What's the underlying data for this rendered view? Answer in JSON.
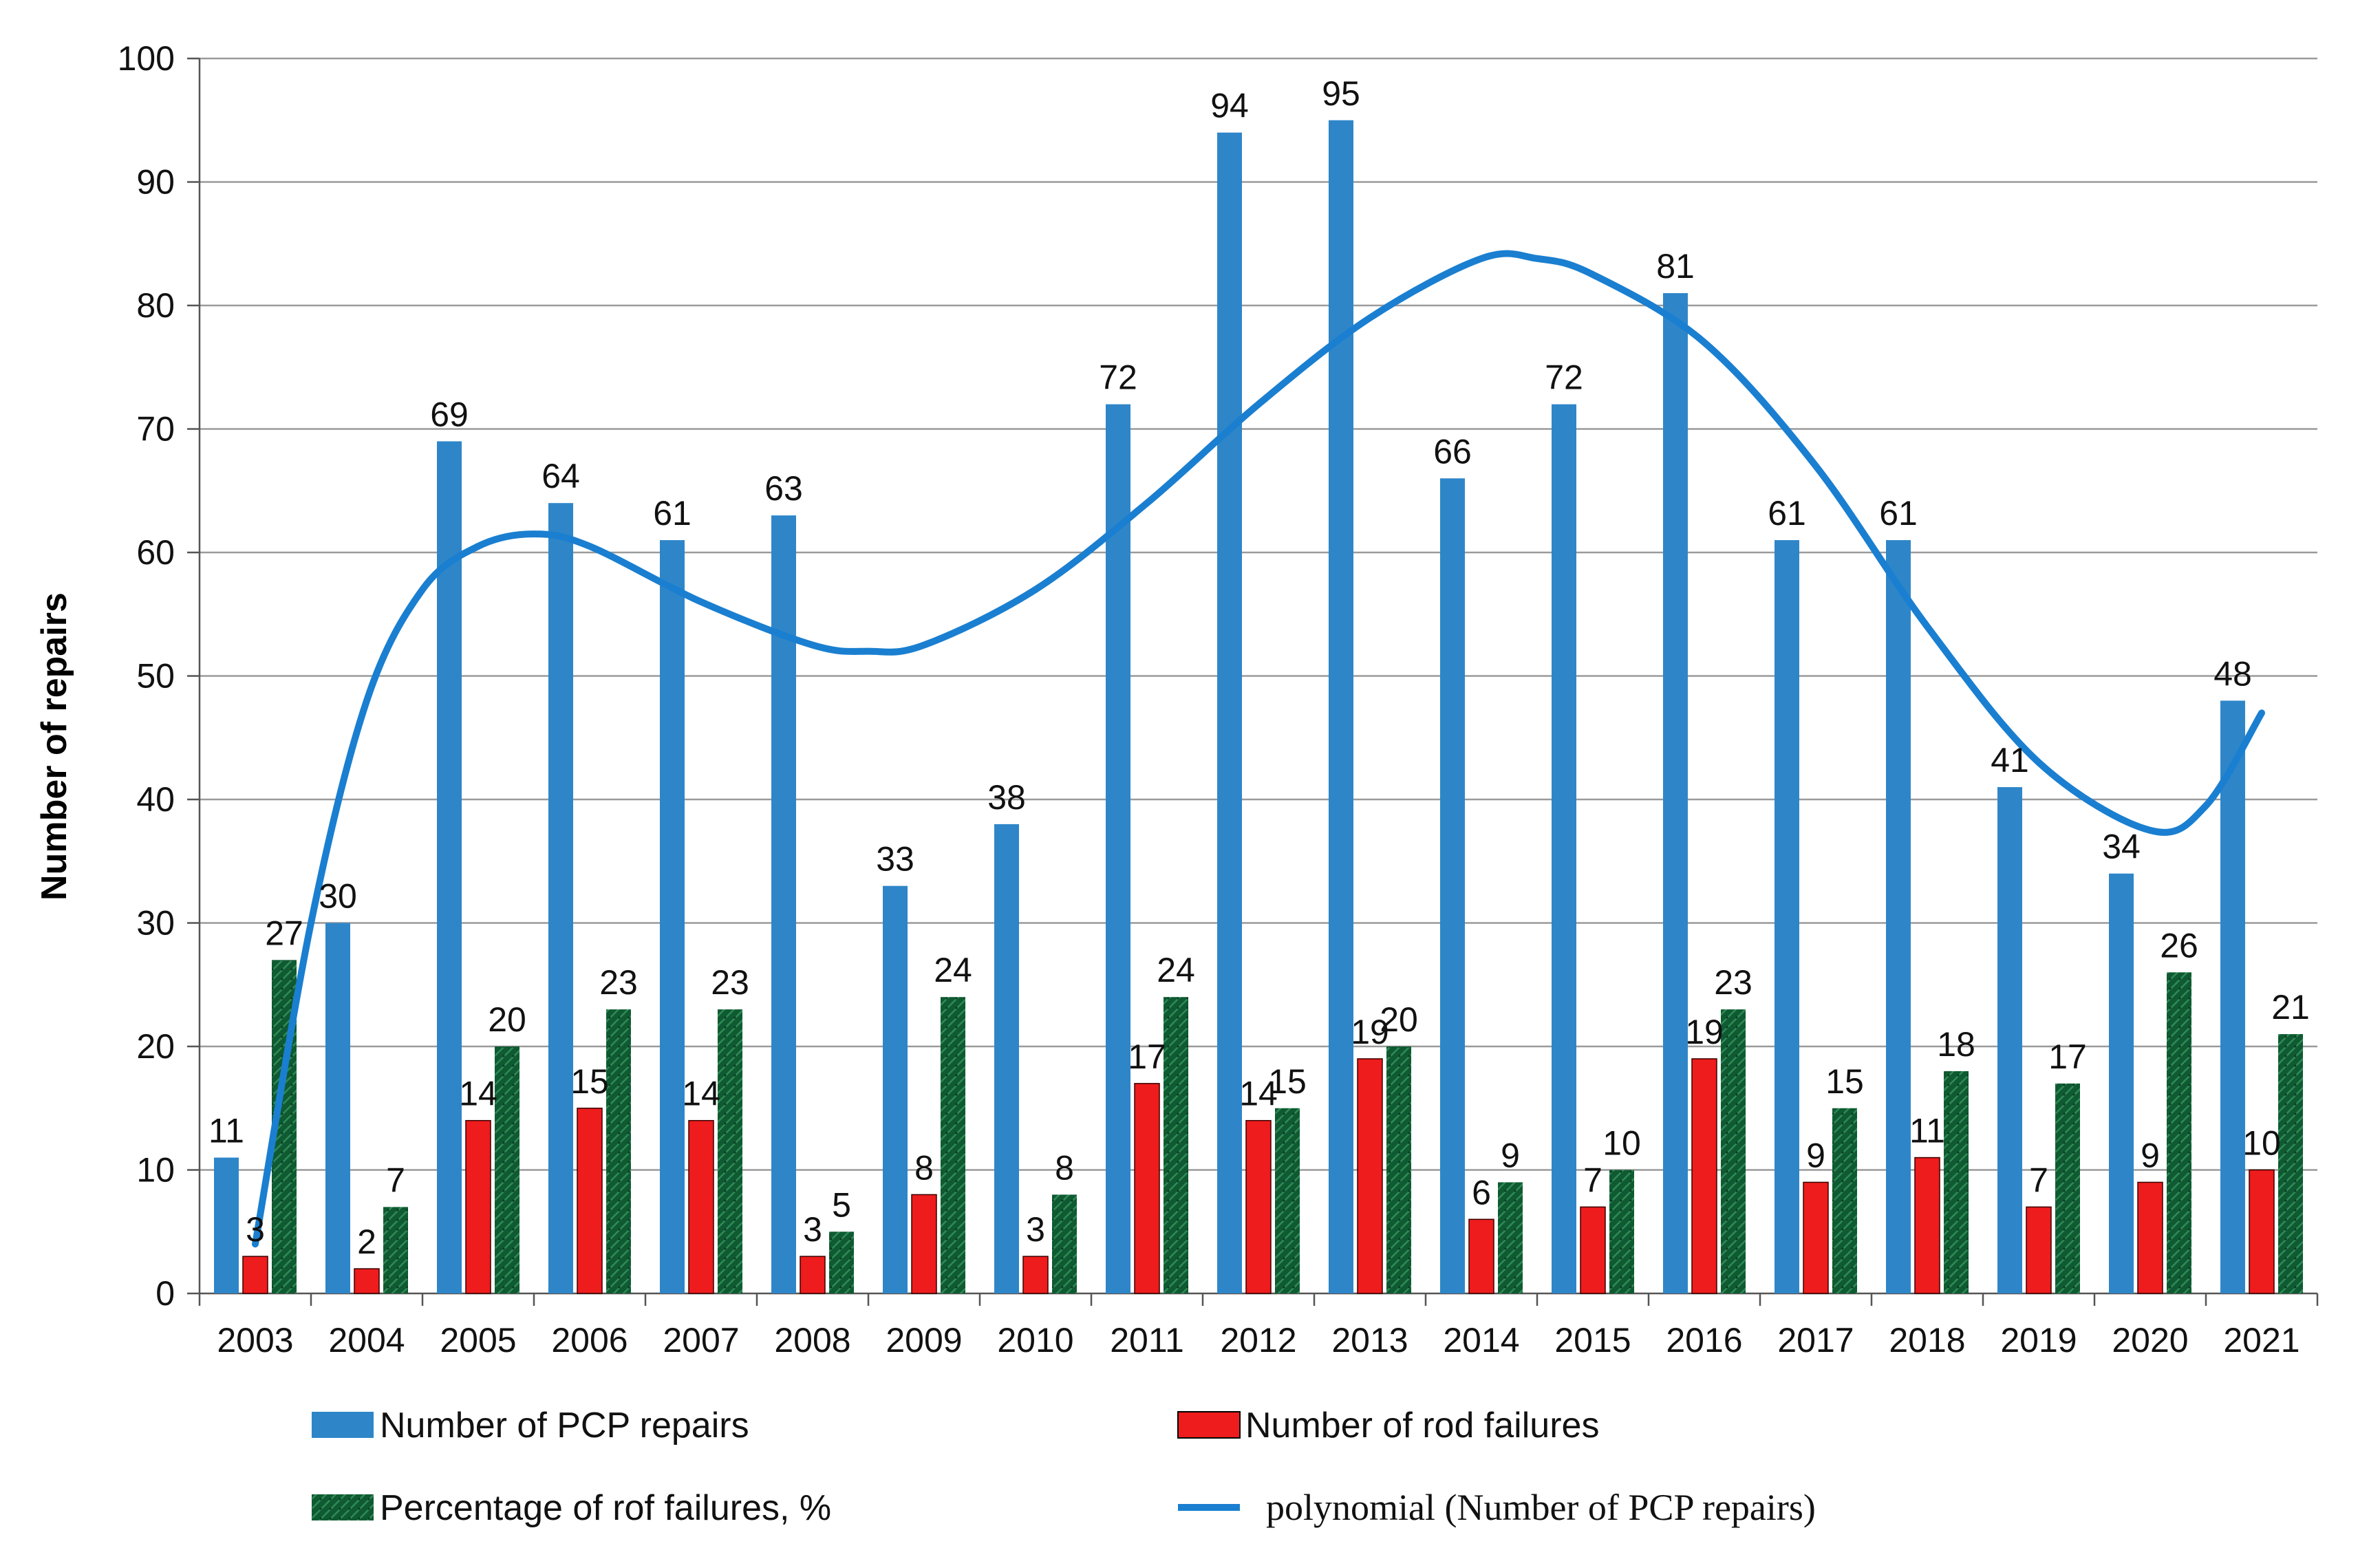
{
  "chart_data": {
    "type": "bar",
    "title": "",
    "xlabel": "",
    "ylabel": "Number of repairs",
    "ylim": [
      0,
      100
    ],
    "yticks": [
      0,
      10,
      20,
      30,
      40,
      50,
      60,
      70,
      80,
      90,
      100
    ],
    "grid": true,
    "categories": [
      "2003",
      "2004",
      "2005",
      "2006",
      "2007",
      "2008",
      "2009",
      "2010",
      "2011",
      "2012",
      "2013",
      "2014",
      "2015",
      "2016",
      "2017",
      "2018",
      "2019",
      "2020",
      "2021"
    ],
    "series": [
      {
        "name": "Number of PCP repairs",
        "color": "#2e86c9",
        "values": [
          11,
          30,
          69,
          64,
          61,
          63,
          33,
          38,
          72,
          94,
          95,
          66,
          72,
          81,
          61,
          61,
          41,
          34,
          48
        ]
      },
      {
        "name": "Number of rod failures",
        "color": "#ee1c1c",
        "values": [
          3,
          2,
          14,
          15,
          14,
          3,
          8,
          3,
          17,
          14,
          19,
          6,
          7,
          19,
          9,
          11,
          7,
          9,
          10
        ]
      },
      {
        "name": "Percentage of rof failures, %",
        "color": "#0f5a32",
        "values": [
          27,
          7,
          20,
          23,
          23,
          5,
          24,
          8,
          24,
          15,
          20,
          9,
          10,
          23,
          15,
          18,
          17,
          26,
          21
        ]
      }
    ],
    "trendline": {
      "name": "polynomial (Number of PCP repairs)",
      "color": "#1a7fd0",
      "points": [
        {
          "year": 2003,
          "value": 4
        },
        {
          "year": 2003.5,
          "value": 30
        },
        {
          "year": 2004,
          "value": 48
        },
        {
          "year": 2004.5,
          "value": 57
        },
        {
          "year": 2005,
          "value": 60.5
        },
        {
          "year": 2005.5,
          "value": 61.5
        },
        {
          "year": 2006,
          "value": 60.5
        },
        {
          "year": 2007,
          "value": 56
        },
        {
          "year": 2008,
          "value": 52.5
        },
        {
          "year": 2008.5,
          "value": 52
        },
        {
          "year": 2009,
          "value": 52.5
        },
        {
          "year": 2010,
          "value": 57
        },
        {
          "year": 2011,
          "value": 64
        },
        {
          "year": 2012,
          "value": 72
        },
        {
          "year": 2013,
          "value": 79
        },
        {
          "year": 2014,
          "value": 83.8
        },
        {
          "year": 2014.5,
          "value": 83.8
        },
        {
          "year": 2015,
          "value": 82.5
        },
        {
          "year": 2016,
          "value": 77
        },
        {
          "year": 2017,
          "value": 67
        },
        {
          "year": 2018,
          "value": 54
        },
        {
          "year": 2019,
          "value": 43
        },
        {
          "year": 2020,
          "value": 37.5
        },
        {
          "year": 2020.5,
          "value": 39.5
        },
        {
          "year": 2021,
          "value": 47
        }
      ]
    },
    "legend": {
      "position": "bottom",
      "entries": [
        "Number of PCP repairs",
        "Number of rod failures",
        "Percentage of rof failures, %",
        "polynomial (Number of PCP repairs)"
      ]
    }
  }
}
